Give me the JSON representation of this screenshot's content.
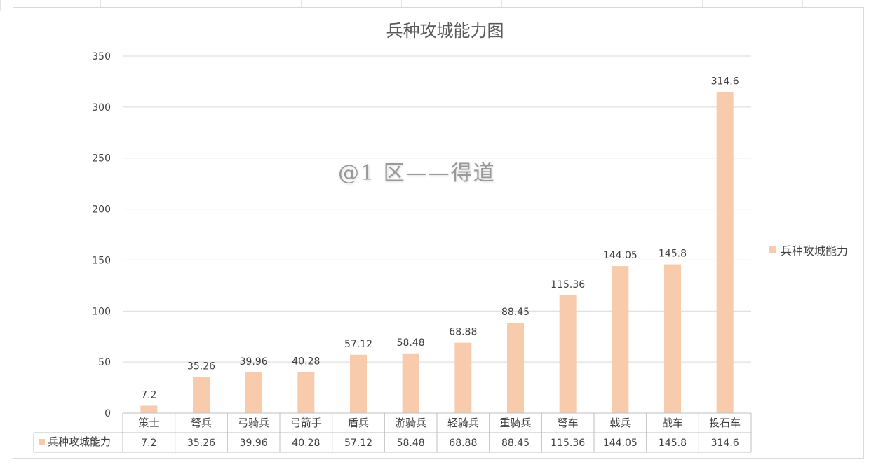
{
  "chart_data": {
    "type": "bar",
    "title": "兵种攻城能力图",
    "categories": [
      "策士",
      "弩兵",
      "弓骑兵",
      "弓箭手",
      "盾兵",
      "游骑兵",
      "轻骑兵",
      "重骑兵",
      "弩车",
      "戟兵",
      "战车",
      "投石车"
    ],
    "series": [
      {
        "name": "兵种攻城能力",
        "values": [
          7.2,
          35.26,
          39.96,
          40.28,
          57.12,
          58.48,
          68.88,
          88.45,
          115.36,
          144.05,
          145.8,
          314.6
        ],
        "labels": [
          "7.2",
          "35.26",
          "39.96",
          "40.28",
          "57.12",
          "58.48",
          "68.88",
          "88.45",
          "115.36",
          "144.05",
          "145.8",
          "314.6"
        ],
        "color": "#f8cbad"
      }
    ],
    "ylim": [
      0,
      350
    ],
    "yticks": [
      "0",
      "50",
      "100",
      "150",
      "200",
      "250",
      "300",
      "350"
    ],
    "grid": true,
    "legend_position": "right",
    "data_table": true
  },
  "legend": {
    "label": "兵种攻城能力"
  },
  "watermark": {
    "text": "@1 区——得道"
  }
}
